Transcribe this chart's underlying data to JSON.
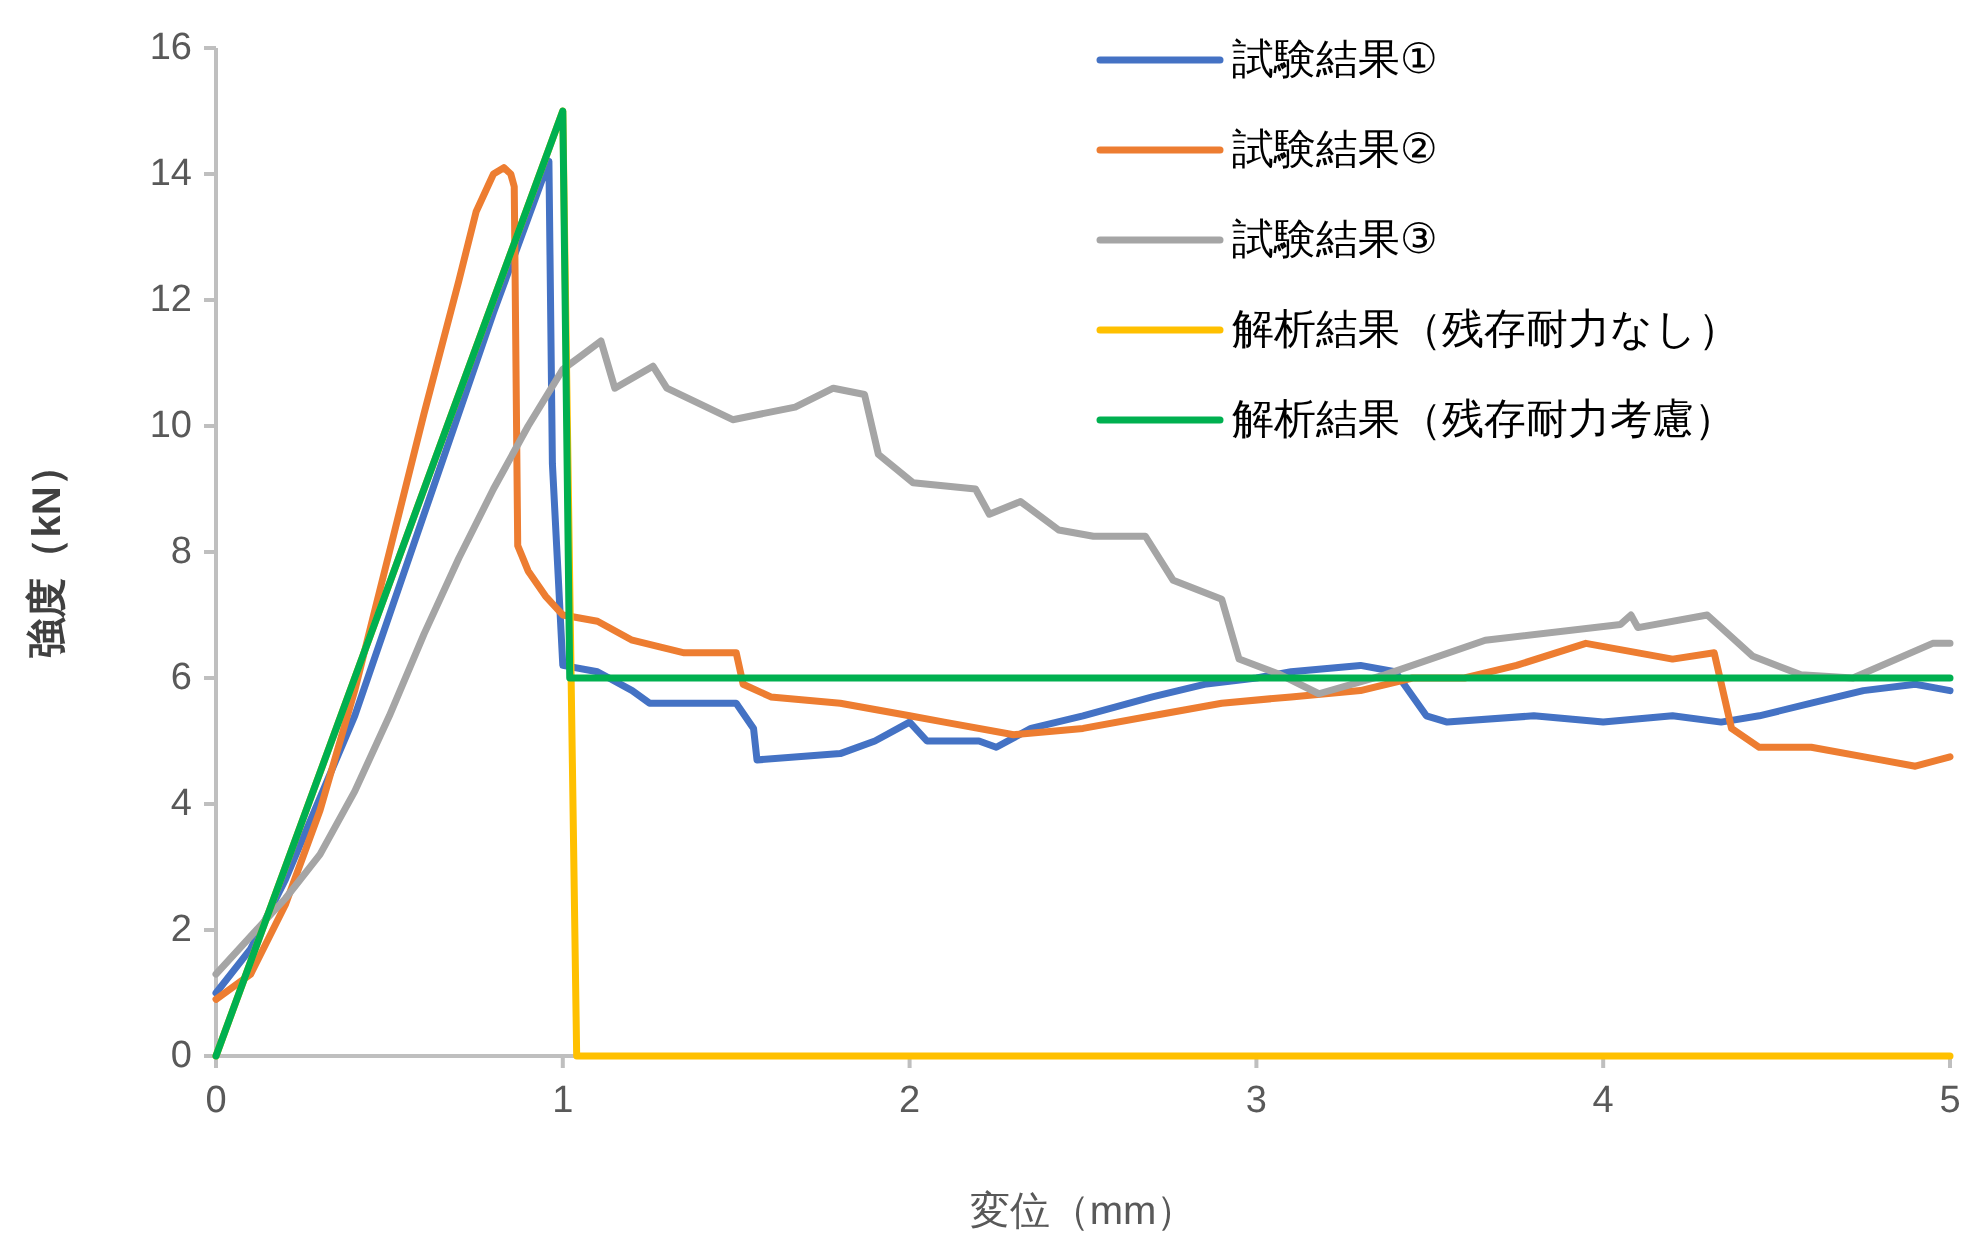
{
  "chart_data": {
    "type": "line",
    "xlabel": "変位（mm）",
    "ylabel": "強度（kN）",
    "xlim": [
      0,
      5
    ],
    "xticks": [
      0,
      1,
      2,
      3,
      4,
      5
    ],
    "ylim": [
      0,
      16
    ],
    "yticks": [
      0,
      2,
      4,
      6,
      8,
      10,
      12,
      14,
      16
    ],
    "grid": false,
    "legend": "top right",
    "marker": "none",
    "line_style": "solid",
    "series": [
      {
        "name": "試験結果①",
        "color": "#4472c4",
        "x": [
          0,
          0.1,
          0.2,
          0.4,
          0.6,
          0.8,
          0.9,
          0.96,
          0.97,
          1.0,
          1.1,
          1.2,
          1.25,
          1.5,
          1.55,
          1.56,
          1.8,
          1.9,
          2.0,
          2.05,
          2.2,
          2.25,
          2.35,
          2.5,
          2.7,
          2.85,
          3.0,
          3.1,
          3.3,
          3.4,
          3.49,
          3.55,
          3.8,
          4.0,
          4.2,
          4.34,
          4.45,
          4.6,
          4.75,
          4.9,
          5.0
        ],
        "values": [
          1.0,
          1.7,
          2.8,
          5.4,
          8.6,
          11.8,
          13.3,
          14.2,
          9.4,
          6.2,
          6.1,
          5.8,
          5.6,
          5.6,
          5.2,
          4.7,
          4.8,
          5.0,
          5.3,
          5.0,
          5.0,
          4.9,
          5.2,
          5.4,
          5.7,
          5.9,
          6.0,
          6.1,
          6.2,
          6.1,
          5.4,
          5.3,
          5.4,
          5.3,
          5.4,
          5.3,
          5.4,
          5.6,
          5.8,
          5.9,
          5.8
        ]
      },
      {
        "name": "試験結果②",
        "color": "#ed7d31",
        "x": [
          0,
          0.1,
          0.2,
          0.3,
          0.4,
          0.5,
          0.6,
          0.7,
          0.75,
          0.8,
          0.83,
          0.85,
          0.86,
          0.87,
          0.9,
          0.95,
          1.0,
          1.1,
          1.2,
          1.35,
          1.5,
          1.52,
          1.6,
          1.8,
          1.9,
          2.0,
          2.1,
          2.3,
          2.5,
          2.7,
          2.9,
          3.1,
          3.3,
          3.45,
          3.6,
          3.75,
          3.95,
          4.2,
          4.32,
          4.37,
          4.45,
          4.6,
          4.8,
          4.9,
          5.0
        ],
        "values": [
          0.9,
          1.3,
          2.4,
          3.9,
          5.8,
          8.0,
          10.2,
          12.3,
          13.4,
          14.0,
          14.1,
          14.0,
          13.8,
          8.1,
          7.7,
          7.3,
          7.0,
          6.9,
          6.6,
          6.4,
          6.4,
          5.9,
          5.7,
          5.6,
          5.5,
          5.4,
          5.3,
          5.1,
          5.2,
          5.4,
          5.6,
          5.7,
          5.8,
          6.0,
          6.0,
          6.2,
          6.55,
          6.3,
          6.4,
          5.2,
          4.9,
          4.9,
          4.7,
          4.6,
          4.75
        ]
      },
      {
        "name": "試験結果③",
        "color": "#a5a5a5",
        "x": [
          0,
          0.2,
          0.3,
          0.4,
          0.5,
          0.6,
          0.7,
          0.8,
          0.9,
          1.0,
          1.05,
          1.11,
          1.15,
          1.26,
          1.3,
          1.49,
          1.67,
          1.78,
          1.87,
          1.91,
          2.01,
          2.19,
          2.23,
          2.32,
          2.43,
          2.53,
          2.68,
          2.76,
          2.9,
          2.95,
          3.07,
          3.18,
          3.37,
          3.66,
          4.05,
          4.08,
          4.1,
          4.3,
          4.43,
          4.57,
          4.72,
          4.95,
          5.0
        ],
        "values": [
          1.3,
          2.5,
          3.2,
          4.2,
          5.4,
          6.7,
          7.9,
          9.0,
          10.0,
          10.9,
          11.1,
          11.35,
          10.6,
          10.95,
          10.6,
          10.1,
          10.3,
          10.6,
          10.5,
          9.55,
          9.1,
          9.0,
          8.6,
          8.8,
          8.35,
          8.25,
          8.25,
          7.55,
          7.25,
          6.3,
          6.05,
          5.75,
          6.05,
          6.6,
          6.85,
          7.0,
          6.8,
          7.0,
          6.35,
          6.05,
          6.0,
          6.55,
          6.55
        ]
      },
      {
        "name": "解析結果（残存耐力なし）",
        "color": "#ffc000",
        "x": [
          0,
          1.0,
          1.04,
          5.0
        ],
        "values": [
          0,
          15.0,
          0,
          0
        ]
      },
      {
        "name": "解析結果（残存耐力考慮）",
        "color": "#00b050",
        "x": [
          0,
          1.0,
          1.02,
          5.0
        ],
        "values": [
          0,
          15.0,
          6.0,
          6.0
        ]
      }
    ]
  }
}
